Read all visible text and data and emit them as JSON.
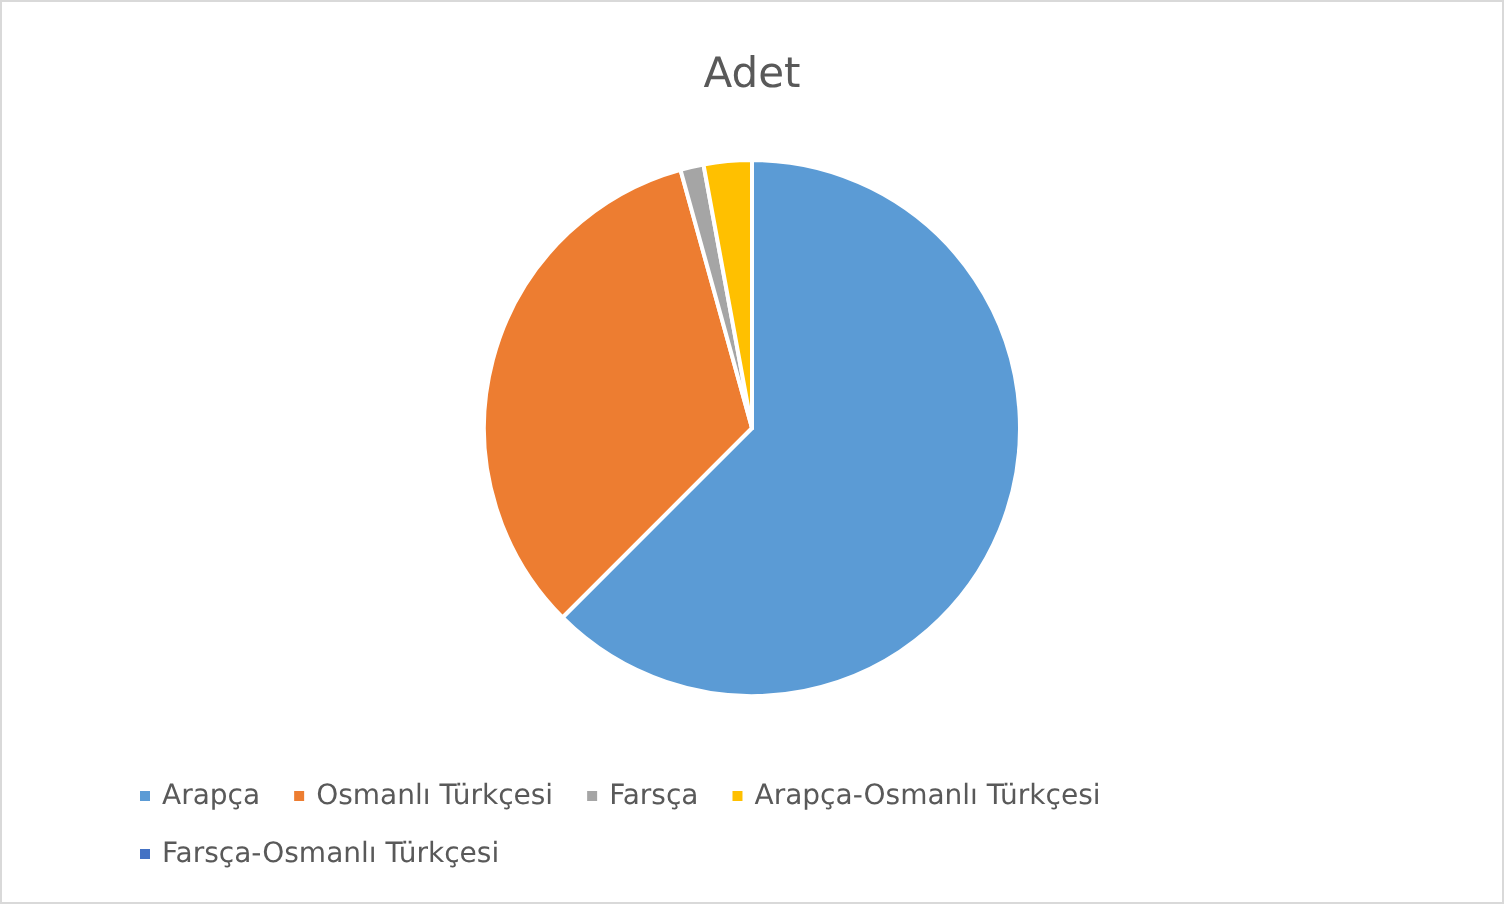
{
  "chart_data": {
    "type": "pie",
    "title": "Adet",
    "categories": [
      "Arapça",
      "Osmanlı Türkçesi",
      "Farsça",
      "Arapça-Osmanlı Türkçesi",
      "Farsça-Osmanlı Türkçesi"
    ],
    "values": [
      62.5,
      33.2,
      1.4,
      2.9,
      0
    ],
    "colors": [
      "#5b9bd5",
      "#ed7d31",
      "#a5a5a5",
      "#ffc000",
      "#4472c4"
    ],
    "legend": "bottom"
  }
}
